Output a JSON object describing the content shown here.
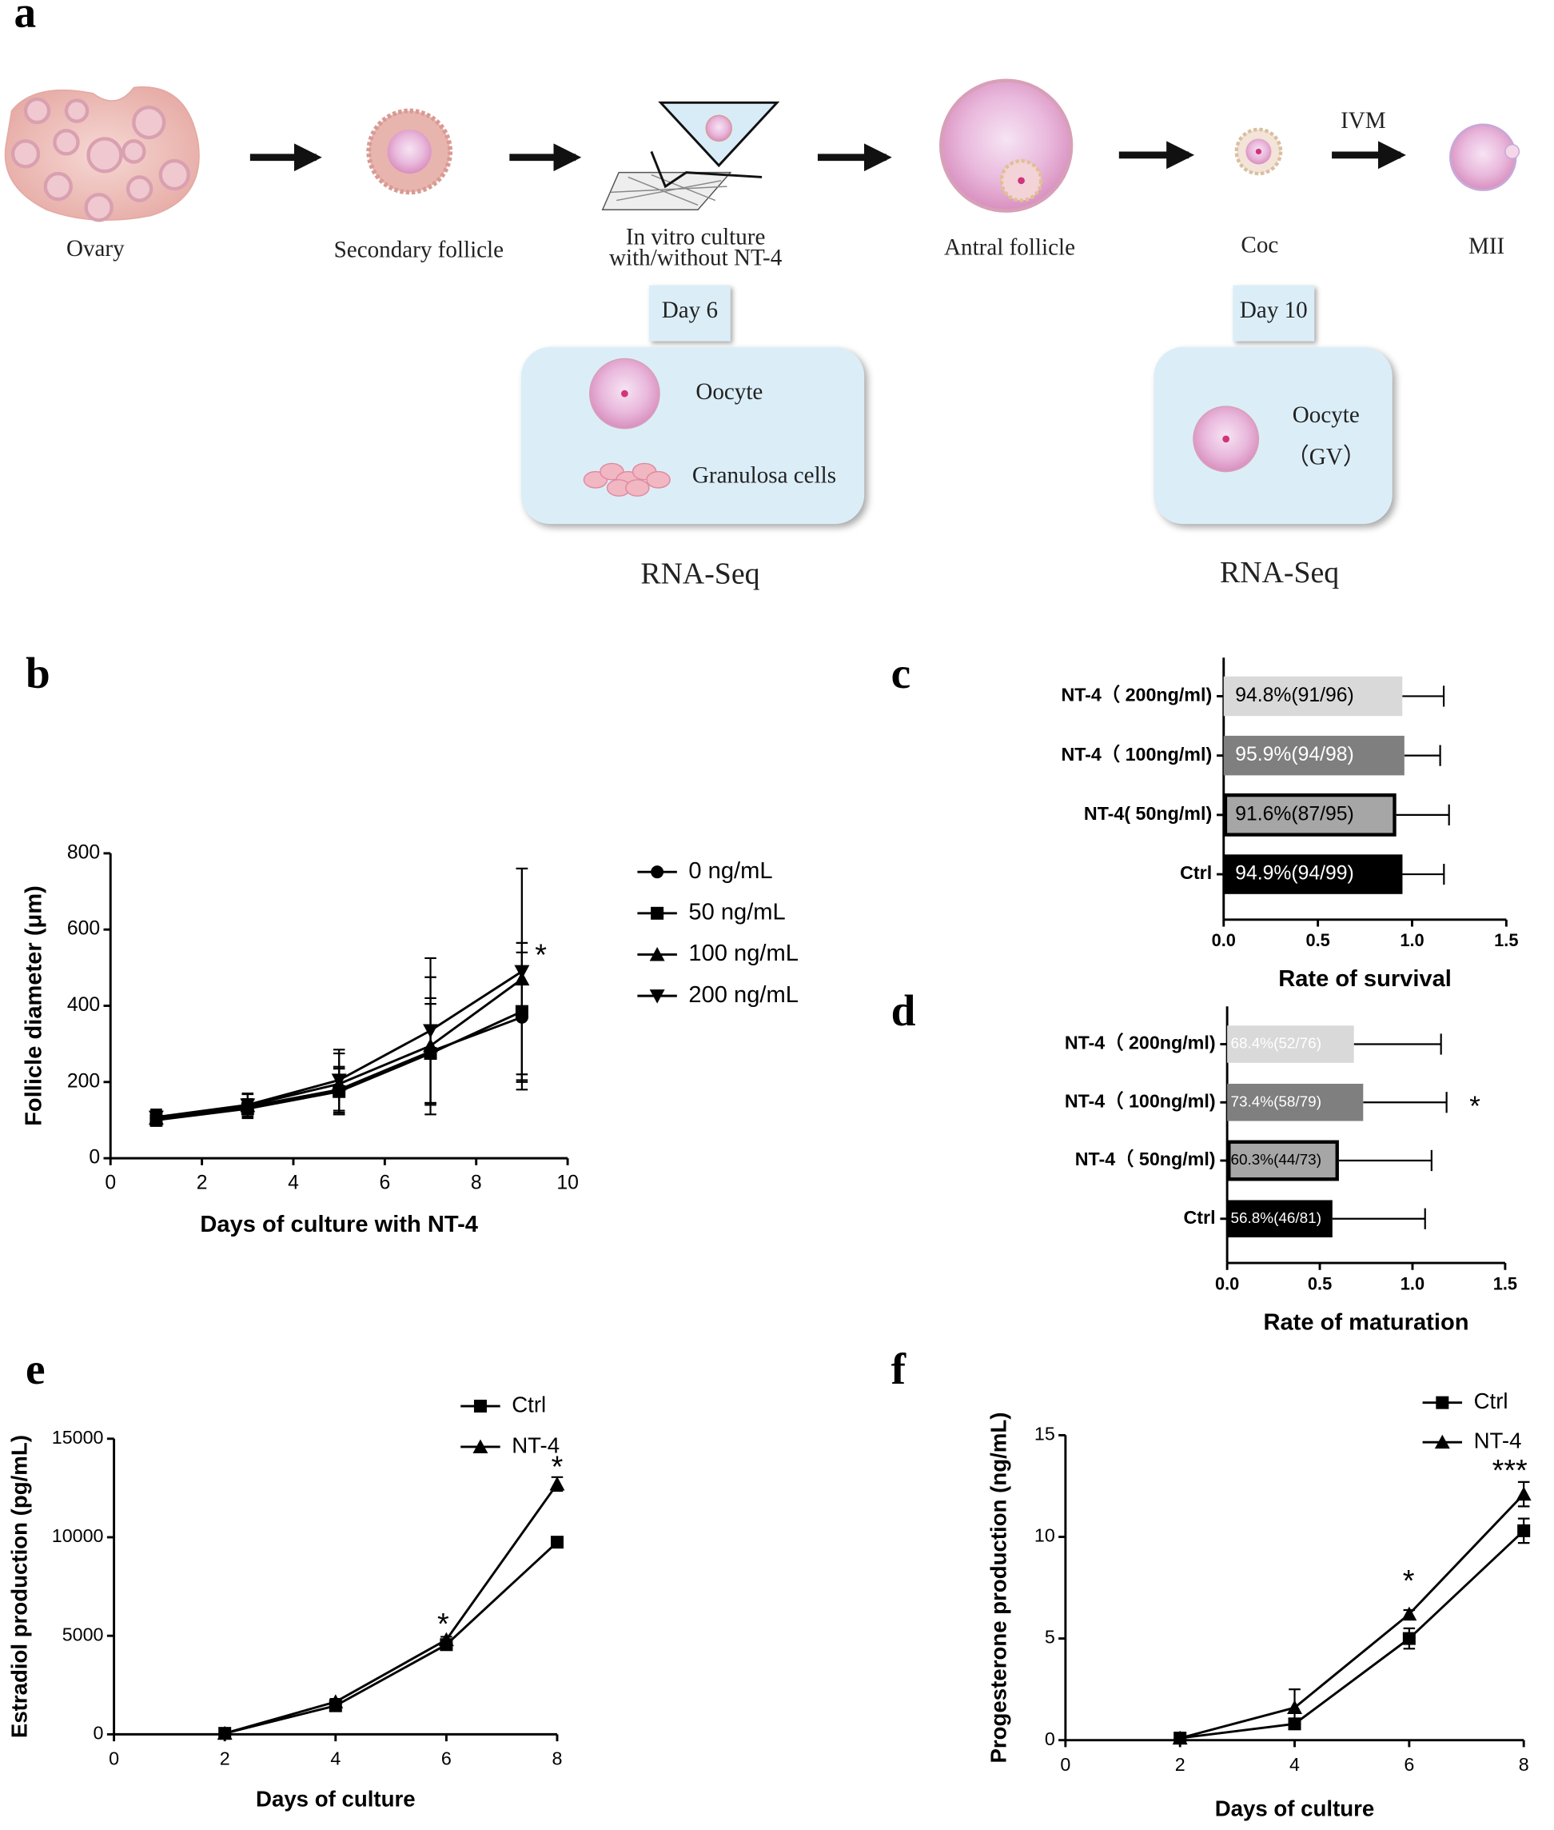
{
  "panel_a": {
    "panel_label": "a",
    "ovary": "Ovary",
    "secondary_follicle": "Secondary follicle",
    "culture": [
      "In vitro culture",
      "with/without NT-4"
    ],
    "antral_follicle": "Antral follicle",
    "coc": "Coc",
    "ivm": "IVM",
    "mii": "MII",
    "day6_box": {
      "day": "Day 6",
      "oocyte": "Oocyte",
      "granulosa": "Granulosa cells",
      "method": "RNA-Seq"
    },
    "day10_box": {
      "day": "Day 10",
      "oocyte": "Oocyte",
      "stage": "（GV）",
      "method": "RNA-Seq"
    }
  },
  "chart_data": [
    {
      "panel_label": "b",
      "type": "line",
      "x_label": "Days of culture with NT-4",
      "y_label": "Follicle diameter (μm)",
      "x": [
        1,
        3,
        5,
        7,
        9
      ],
      "xlim": [
        0,
        10
      ],
      "xticks": [
        0,
        2,
        4,
        6,
        8,
        10
      ],
      "ylim": [
        0,
        800
      ],
      "yticks": [
        0,
        200,
        400,
        600,
        800
      ],
      "series": [
        {
          "name": "0 ng/mL",
          "color": "#000000",
          "marker": "circle",
          "values": [
            105,
            135,
            180,
            280,
            370
          ],
          "errors": [
            15,
            20,
            60,
            140,
            170
          ]
        },
        {
          "name": "50 ng/mL",
          "color": "#000000",
          "marker": "square",
          "values": [
            100,
            130,
            175,
            275,
            385
          ],
          "errors": [
            15,
            25,
            60,
            130,
            180
          ]
        },
        {
          "name": "100 ng/mL",
          "color": "#000000",
          "marker": "triangle",
          "values": [
            105,
            138,
            195,
            295,
            470
          ],
          "errors": [
            20,
            30,
            80,
            180,
            290
          ]
        },
        {
          "name": "200 ng/mL",
          "color": "#000000",
          "marker": "triangle-down",
          "values": [
            108,
            140,
            205,
            335,
            490
          ],
          "errors": [
            20,
            30,
            80,
            190,
            270
          ]
        }
      ],
      "annotations": [
        "*"
      ]
    },
    {
      "panel_label": "c",
      "type": "bar",
      "orientation": "horizontal",
      "x_label": "Rate of survival",
      "categories": [
        "NT-4（ 200ng/ml)",
        "NT-4（ 100ng/ml)",
        "NT-4( 50ng/ml)",
        "Ctrl"
      ],
      "values": [
        0.948,
        0.959,
        0.916,
        0.949
      ],
      "value_labels": [
        "94.8%(91/96)",
        "95.9%(94/98)",
        "91.6%(87/95)",
        "94.9%(94/99)"
      ],
      "errors": [
        0.22,
        0.19,
        0.28,
        0.22
      ],
      "colors": [
        "#d9d9d9",
        "#7f7f7f",
        "#a6a6a6",
        "#000000"
      ],
      "edgecolors": [
        "#d9d9d9",
        "#7f7f7f",
        "#000000",
        "#000000"
      ],
      "label_colors": [
        "#000000",
        "#ffffff",
        "#000000",
        "#ffffff"
      ],
      "xlim": [
        0,
        1.5
      ],
      "xticks": [
        {
          "value": 0,
          "label": "0.0"
        },
        0.5,
        {
          "value": 1,
          "label": "1.0"
        },
        1.5
      ],
      "annotations": []
    },
    {
      "panel_label": "d",
      "type": "bar",
      "orientation": "horizontal",
      "x_label": "Rate of maturation",
      "categories": [
        "NT-4（ 200ng/ml)",
        "NT-4（ 100ng/ml)",
        "NT-4（ 50ng/ml)",
        "Ctrl"
      ],
      "values": [
        0.684,
        0.734,
        0.603,
        0.568
      ],
      "value_labels": [
        "68.4%(52/76)",
        "73.4%(58/79)",
        "60.3%(44/73)",
        "56.8%(46/81)"
      ],
      "errors": [
        0.47,
        0.45,
        0.5,
        0.5
      ],
      "colors": [
        "#d9d9d9",
        "#7f7f7f",
        "#a6a6a6",
        "#000000"
      ],
      "edgecolors": [
        "#d9d9d9",
        "#7f7f7f",
        "#000000",
        "#000000"
      ],
      "label_colors": [
        "#ffffff",
        "#ffffff",
        "#000000",
        "#ffffff"
      ],
      "xlim": [
        0,
        1.5
      ],
      "xticks": [
        {
          "value": 0,
          "label": "0.0"
        },
        0.5,
        {
          "value": 1,
          "label": "1.0"
        },
        1.5
      ],
      "annotations": [
        "*"
      ]
    },
    {
      "panel_label": "e",
      "type": "line",
      "x_label": "Days of culture",
      "y_label": "Estradiol production (pg/mL)",
      "x": [
        2,
        4,
        6,
        8
      ],
      "xlim": [
        0,
        8
      ],
      "xticks": [
        0,
        2,
        4,
        6,
        8
      ],
      "ylim": [
        0,
        15000
      ],
      "yticks": [
        0,
        5000,
        10000,
        15000
      ],
      "series": [
        {
          "name": "Ctrl",
          "color": "#000000",
          "marker": "square",
          "values": [
            50,
            1450,
            4550,
            9750
          ],
          "errors": [
            50,
            150,
            150,
            100
          ]
        },
        {
          "name": "NT-4",
          "color": "#000000",
          "marker": "triangle",
          "values": [
            50,
            1650,
            4800,
            12700
          ],
          "errors": [
            50,
            150,
            150,
            350
          ]
        }
      ],
      "annotations": [
        "*",
        "*"
      ]
    },
    {
      "panel_label": "f",
      "type": "line",
      "x_label": "Days of culture",
      "y_label": "Progesterone production (ng/mL)",
      "x": [
        2,
        4,
        6,
        8
      ],
      "xlim": [
        0,
        8
      ],
      "xticks": [
        0,
        2,
        4,
        6,
        8
      ],
      "ylim": [
        0,
        15
      ],
      "yticks": [
        0,
        5,
        10,
        15
      ],
      "series": [
        {
          "name": "Ctrl",
          "color": "#000000",
          "marker": "square",
          "values": [
            0.1,
            0.8,
            5.0,
            10.3
          ],
          "errors": [
            0.1,
            0.2,
            0.5,
            0.6
          ]
        },
        {
          "name": "NT-4",
          "color": "#000000",
          "marker": "triangle",
          "values": [
            0.1,
            1.6,
            6.2,
            12.1
          ],
          "errors": [
            0.1,
            0.9,
            0.2,
            0.6
          ]
        }
      ],
      "annotations": [
        "*",
        "***"
      ]
    }
  ]
}
